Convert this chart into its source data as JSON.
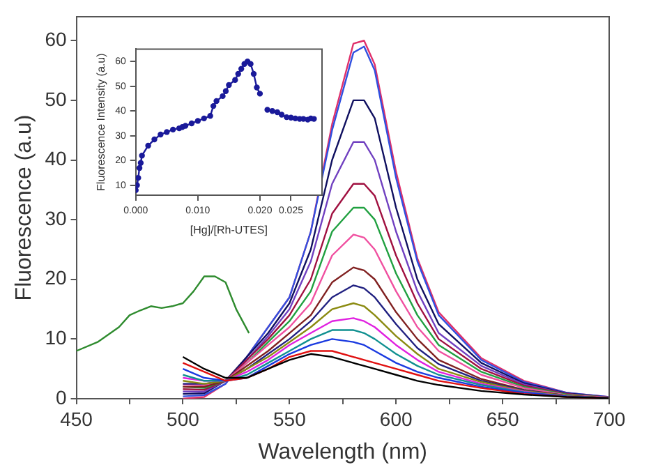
{
  "chart_data": [
    {
      "type": "line",
      "xlabel": "Wavelength (nm)",
      "ylabel": "Fluorescence (a.u)",
      "xlim": [
        450,
        700
      ],
      "ylim": [
        0,
        64
      ],
      "xticks": [
        450,
        {
          "value": 475,
          "label": null
        },
        500,
        {
          "value": 525,
          "label": null
        },
        550,
        {
          "value": 575,
          "label": null
        },
        600,
        {
          "value": 625,
          "label": null
        },
        650,
        {
          "value": 675,
          "label": null
        },
        700
      ],
      "yticks": [
        0,
        10,
        20,
        30,
        40,
        50,
        60
      ],
      "grid": false,
      "legend": false,
      "marker": "none",
      "line_style": "solid",
      "series": [
        {
          "color": "#2e8b2e",
          "x": [
            450,
            460,
            470,
            475,
            480,
            485,
            490,
            495,
            500,
            505,
            510,
            515,
            520,
            525,
            531
          ],
          "values": [
            8,
            9.5,
            12,
            14,
            14.8,
            15.5,
            15.2,
            15.5,
            16,
            18,
            20.5,
            20.5,
            19.5,
            15,
            11
          ]
        },
        {
          "color": "#000000",
          "x": [
            500,
            510,
            520,
            530,
            540,
            550,
            560,
            570,
            580,
            585,
            590,
            600,
            610,
            620,
            640,
            660,
            680,
            700
          ],
          "values": [
            7,
            5,
            3.5,
            3.5,
            5,
            6.5,
            7.5,
            7,
            6,
            5.5,
            5,
            4,
            3,
            2.3,
            1.3,
            0.7,
            0.3,
            0.1
          ]
        },
        {
          "color": "#e01010",
          "x": [
            500,
            510,
            520,
            530,
            540,
            550,
            560,
            570,
            580,
            585,
            590,
            600,
            610,
            620,
            640,
            660,
            680,
            700
          ],
          "values": [
            6,
            4.5,
            3,
            3.5,
            5,
            7,
            8,
            8,
            7,
            6.5,
            6,
            5,
            4,
            3,
            1.8,
            0.8,
            0.3,
            0.1
          ]
        },
        {
          "color": "#1a3ae0",
          "x": [
            500,
            510,
            520,
            530,
            540,
            550,
            560,
            570,
            580,
            585,
            590,
            600,
            610,
            620,
            640,
            660,
            680,
            700
          ],
          "values": [
            5,
            3.5,
            3,
            3.5,
            5.5,
            7.5,
            9,
            10,
            9.5,
            9,
            8,
            6,
            4.5,
            3.5,
            2,
            1,
            0.4,
            0.1
          ]
        },
        {
          "color": "#109090",
          "x": [
            500,
            510,
            520,
            530,
            540,
            550,
            560,
            570,
            580,
            585,
            590,
            600,
            610,
            620,
            640,
            660,
            680,
            700
          ],
          "values": [
            4,
            3,
            3,
            4,
            6,
            8,
            10,
            11.5,
            11.5,
            11,
            10,
            7.5,
            5.5,
            4,
            2.3,
            1.1,
            0.4,
            0.1
          ]
        },
        {
          "color": "#e020e0",
          "x": [
            500,
            510,
            520,
            530,
            540,
            550,
            560,
            570,
            580,
            585,
            590,
            600,
            610,
            620,
            640,
            660,
            680,
            700
          ],
          "values": [
            3.5,
            3,
            3,
            4.5,
            6.5,
            9,
            11,
            13,
            13.5,
            13,
            12,
            9,
            6.5,
            4.5,
            2.5,
            1.2,
            0.4,
            0.1
          ]
        },
        {
          "color": "#8a8a10",
          "x": [
            500,
            510,
            520,
            530,
            540,
            550,
            560,
            570,
            580,
            585,
            590,
            600,
            610,
            620,
            640,
            660,
            680,
            700
          ],
          "values": [
            3,
            2.5,
            3,
            5,
            7,
            9.5,
            12,
            15,
            16,
            15.5,
            14,
            10.5,
            7.5,
            5,
            2.8,
            1.3,
            0.5,
            0.1
          ]
        },
        {
          "color": "#202080",
          "x": [
            500,
            510,
            520,
            530,
            540,
            550,
            560,
            570,
            580,
            585,
            590,
            600,
            610,
            620,
            640,
            660,
            680,
            700
          ],
          "values": [
            2.5,
            2.5,
            3,
            5,
            7.5,
            10,
            13,
            17,
            19,
            18.5,
            17,
            12.5,
            8.5,
            5.8,
            3,
            1.4,
            0.5,
            0.1
          ]
        },
        {
          "color": "#802020",
          "x": [
            500,
            510,
            520,
            530,
            540,
            550,
            560,
            570,
            580,
            585,
            590,
            600,
            610,
            620,
            640,
            660,
            680,
            700
          ],
          "values": [
            2,
            2,
            3,
            5.5,
            8,
            11,
            14,
            19.5,
            22,
            21.5,
            20,
            14.5,
            10,
            6.5,
            3.3,
            1.5,
            0.5,
            0.1
          ]
        },
        {
          "color": "#f050a0",
          "x": [
            500,
            510,
            520,
            530,
            540,
            550,
            560,
            570,
            580,
            585,
            590,
            600,
            610,
            620,
            640,
            660,
            680,
            700
          ],
          "values": [
            2.4,
            2.2,
            3,
            6,
            9,
            12,
            16,
            24,
            27.5,
            27,
            25,
            18,
            12,
            8,
            4,
            1.8,
            0.6,
            0.2
          ]
        },
        {
          "color": "#20a040",
          "x": [
            500,
            510,
            520,
            530,
            540,
            550,
            560,
            570,
            580,
            585,
            590,
            600,
            610,
            620,
            640,
            660,
            680,
            700
          ],
          "values": [
            2,
            1.8,
            3,
            6,
            9.5,
            13,
            18,
            28,
            32,
            32,
            30,
            21,
            14,
            9,
            4.5,
            2,
            0.7,
            0.2
          ]
        },
        {
          "color": "#a01040",
          "x": [
            500,
            510,
            520,
            530,
            540,
            550,
            560,
            570,
            580,
            585,
            590,
            600,
            610,
            620,
            640,
            660,
            680,
            700
          ],
          "values": [
            1.6,
            1.5,
            3,
            6.5,
            10,
            14,
            20,
            31,
            36,
            36,
            34,
            24,
            16,
            10,
            5,
            2.2,
            0.8,
            0.2
          ]
        },
        {
          "color": "#7040c0",
          "x": [
            500,
            510,
            520,
            530,
            540,
            550,
            560,
            570,
            580,
            585,
            590,
            600,
            610,
            620,
            640,
            660,
            680,
            700
          ],
          "values": [
            1.2,
            1.2,
            3,
            6.5,
            10.5,
            15,
            23,
            36,
            43,
            43,
            40,
            28,
            18,
            11,
            5.5,
            2.4,
            0.8,
            0.2
          ]
        },
        {
          "color": "#101060",
          "x": [
            500,
            510,
            520,
            530,
            540,
            550,
            560,
            570,
            580,
            585,
            590,
            600,
            610,
            620,
            640,
            660,
            680,
            700
          ],
          "values": [
            0.8,
            0.9,
            3,
            7,
            11,
            16,
            25,
            40,
            50,
            50,
            47,
            32,
            20,
            12.5,
            6,
            2.6,
            0.9,
            0.2
          ]
        },
        {
          "color": "#3050e0",
          "x": [
            500,
            510,
            520,
            530,
            540,
            550,
            560,
            570,
            580,
            585,
            590,
            600,
            610,
            620,
            640,
            660,
            680,
            700
          ],
          "values": [
            0.4,
            0.6,
            2.5,
            7,
            12,
            17,
            28,
            45,
            58,
            59,
            55,
            37,
            23,
            14,
            6.5,
            2.8,
            1,
            0.3
          ]
        },
        {
          "color": "#e0306a",
          "x": [
            500,
            510,
            520,
            530,
            540,
            550,
            560,
            570,
            580,
            585,
            590,
            600,
            610,
            620,
            640,
            660,
            680,
            700
          ],
          "values": [
            0,
            0.3,
            2.5,
            7,
            12,
            17,
            28,
            46,
            59.5,
            60,
            56,
            38,
            23.5,
            14.5,
            6.8,
            3,
            1,
            0.3
          ]
        }
      ]
    },
    {
      "type": "line",
      "xlabel": "[Hg]/[Rh-UTES]",
      "ylabel": "Fluorescence Intensity (a.u)",
      "xlim": [
        0,
        0.03
      ],
      "ylim": [
        6,
        65
      ],
      "xticks": [
        {
          "value": 0,
          "label": "0.000"
        },
        {
          "value": 0.01,
          "label": "0.010"
        },
        {
          "value": 0.02,
          "label": "0.020"
        },
        {
          "value": 0.025,
          "label": "0.025"
        }
      ],
      "yticks": [
        10,
        20,
        30,
        40,
        50,
        60
      ],
      "grid": false,
      "legend": false,
      "marker": "circle",
      "line_style": "solid",
      "series": [
        {
          "color": "#1a1a9a",
          "x": [
            0,
            0.0002,
            0.0004,
            0.0006,
            0.0008,
            0.001,
            0.002,
            0.003,
            0.004,
            0.005,
            0.006,
            0.007,
            0.0075,
            0.008,
            0.009,
            0.01,
            0.011,
            0.012,
            0.0125,
            0.013,
            0.014,
            0.0145,
            0.015,
            0.016,
            0.0165,
            0.017,
            0.0175,
            0.018,
            0.0185,
            0.019,
            0.0195,
            0.02,
            0.0205,
            0.0212,
            0.022,
            0.0228,
            0.0235,
            0.0243,
            0.025,
            0.0257,
            0.0264,
            0.027,
            0.0277,
            0.0282,
            0.0287
          ],
          "values": [
            8,
            10,
            13,
            17,
            19,
            22,
            26,
            28.5,
            30.5,
            31.5,
            32.5,
            33,
            33.5,
            34,
            35,
            36,
            37,
            38,
            42,
            44,
            46,
            48,
            50.5,
            52.5,
            55,
            57,
            59,
            60,
            59,
            55,
            49.5,
            47,
            null,
            40.5,
            40,
            39.5,
            38.5,
            37.5,
            37.3,
            37,
            36.8,
            36.8,
            36.5,
            37,
            36.8
          ]
        }
      ]
    }
  ]
}
